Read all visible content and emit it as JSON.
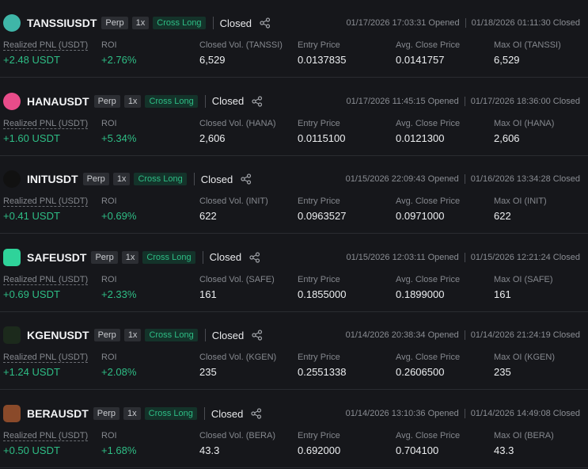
{
  "positions": [
    {
      "symbol": "TANSSIUSDT",
      "tags": [
        "Perp",
        "1x",
        "Cross Long"
      ],
      "status": "Closed",
      "opened": "01/17/2026 17:03:31 Opened",
      "closed": "01/18/2026 01:11:30 Closed",
      "fields": [
        {
          "label": "Realized PNL (USDT)",
          "value": "+2.48 USDT"
        },
        {
          "label": "ROI",
          "value": "+2.76%"
        },
        {
          "label": "Closed Vol. (TANSSI)",
          "value": "6,529"
        },
        {
          "label": "Entry Price",
          "value": "0.0137835"
        },
        {
          "label": "Avg. Close Price",
          "value": "0.0141757"
        },
        {
          "label": "Max OI (TANSSI)",
          "value": "6,529"
        }
      ]
    },
    {
      "symbol": "HANAUSDT",
      "tags": [
        "Perp",
        "1x",
        "Cross Long"
      ],
      "status": "Closed",
      "opened": "01/17/2026 11:45:15 Opened",
      "closed": "01/17/2026 18:36:00 Closed",
      "fields": [
        {
          "label": "Realized PNL (USDT)",
          "value": "+1.60 USDT"
        },
        {
          "label": "ROI",
          "value": "+5.34%"
        },
        {
          "label": "Closed Vol. (HANA)",
          "value": "2,606"
        },
        {
          "label": "Entry Price",
          "value": "0.0115100"
        },
        {
          "label": "Avg. Close Price",
          "value": "0.0121300"
        },
        {
          "label": "Max OI (HANA)",
          "value": "2,606"
        }
      ]
    },
    {
      "symbol": "INITUSDT",
      "tags": [
        "Perp",
        "1x",
        "Cross Long"
      ],
      "status": "Closed",
      "opened": "01/15/2026 22:09:43 Opened",
      "closed": "01/16/2026 13:34:28 Closed",
      "fields": [
        {
          "label": "Realized PNL (USDT)",
          "value": "+0.41 USDT"
        },
        {
          "label": "ROI",
          "value": "+0.69%"
        },
        {
          "label": "Closed Vol. (INIT)",
          "value": "622"
        },
        {
          "label": "Entry Price",
          "value": "0.0963527"
        },
        {
          "label": "Avg. Close Price",
          "value": "0.0971000"
        },
        {
          "label": "Max OI (INIT)",
          "value": "622"
        }
      ]
    },
    {
      "symbol": "SAFEUSDT",
      "tags": [
        "Perp",
        "1x",
        "Cross Long"
      ],
      "status": "Closed",
      "opened": "01/15/2026 12:03:11 Opened",
      "closed": "01/15/2026 12:21:24 Closed",
      "fields": [
        {
          "label": "Realized PNL (USDT)",
          "value": "+0.69 USDT"
        },
        {
          "label": "ROI",
          "value": "+2.33%"
        },
        {
          "label": "Closed Vol. (SAFE)",
          "value": "161"
        },
        {
          "label": "Entry Price",
          "value": "0.1855000"
        },
        {
          "label": "Avg. Close Price",
          "value": "0.1899000"
        },
        {
          "label": "Max OI (SAFE)",
          "value": "161"
        }
      ]
    },
    {
      "symbol": "KGENUSDT",
      "tags": [
        "Perp",
        "1x",
        "Cross Long"
      ],
      "status": "Closed",
      "opened": "01/14/2026 20:38:34 Opened",
      "closed": "01/14/2026 21:24:19 Closed",
      "fields": [
        {
          "label": "Realized PNL (USDT)",
          "value": "+1.24 USDT"
        },
        {
          "label": "ROI",
          "value": "+2.08%"
        },
        {
          "label": "Closed Vol. (KGEN)",
          "value": "235"
        },
        {
          "label": "Entry Price",
          "value": "0.2551338"
        },
        {
          "label": "Avg. Close Price",
          "value": "0.2606500"
        },
        {
          "label": "Max OI (KGEN)",
          "value": "235"
        }
      ]
    },
    {
      "symbol": "BERAUSDT",
      "tags": [
        "Perp",
        "1x",
        "Cross Long"
      ],
      "status": "Closed",
      "opened": "01/14/2026 13:10:36 Opened",
      "closed": "01/14/2026 14:49:08 Closed",
      "fields": [
        {
          "label": "Realized PNL (USDT)",
          "value": "+0.50 USDT"
        },
        {
          "label": "ROI",
          "value": "+1.68%"
        },
        {
          "label": "Closed Vol. (BERA)",
          "value": "43.3"
        },
        {
          "label": "Entry Price",
          "value": "0.692000"
        },
        {
          "label": "Avg. Close Price",
          "value": "0.704100"
        },
        {
          "label": "Max OI (BERA)",
          "value": "43.3"
        }
      ]
    }
  ]
}
